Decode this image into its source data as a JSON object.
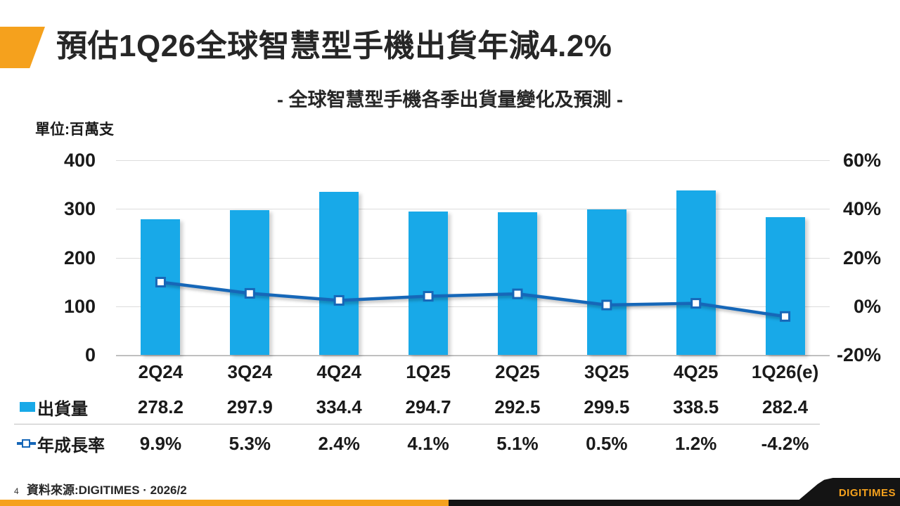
{
  "page": {
    "number": "4"
  },
  "header": {
    "title": "預估1Q26全球智慧型手機出貨年減4.2%"
  },
  "chart": {
    "subtitle": "- 全球智慧型手機各季出貨量變化及預測 -",
    "unit_label": "單位:百萬支"
  },
  "chart_data": {
    "type": "combo-bar-line",
    "categories": [
      "2Q24",
      "3Q24",
      "4Q24",
      "1Q25",
      "2Q25",
      "3Q25",
      "4Q25",
      "1Q26(e)"
    ],
    "series": [
      {
        "name": "出貨量",
        "type": "bar",
        "axis": "left",
        "color": "#18A9E8",
        "values": [
          278.2,
          297.9,
          334.4,
          294.7,
          292.5,
          299.5,
          338.5,
          282.4
        ]
      },
      {
        "name": "年成長率",
        "type": "line",
        "axis": "right",
        "color": "#1667B8",
        "marker": "square-white-fill",
        "values_percent": [
          9.9,
          5.3,
          2.4,
          4.1,
          5.1,
          0.5,
          1.2,
          -4.2
        ]
      }
    ],
    "left_axis": {
      "ticks": [
        "400",
        "300",
        "200",
        "100",
        "0"
      ],
      "min": 0,
      "max": 400,
      "unit": "百萬支"
    },
    "right_axis": {
      "ticks": [
        "60%",
        "40%",
        "20%",
        "0%",
        "-20%"
      ],
      "min": -20,
      "max": 60
    },
    "grid": true,
    "legend_position": "table-left"
  },
  "footer": {
    "source": "資料來源:DIGITIMES · 2026/2"
  },
  "logo": {
    "text": "DIGITIMES"
  },
  "colors": {
    "accent_orange": "#F5A11D",
    "bar_blue": "#18A9E8",
    "line_blue": "#1667B8",
    "footer_black": "#141414"
  }
}
